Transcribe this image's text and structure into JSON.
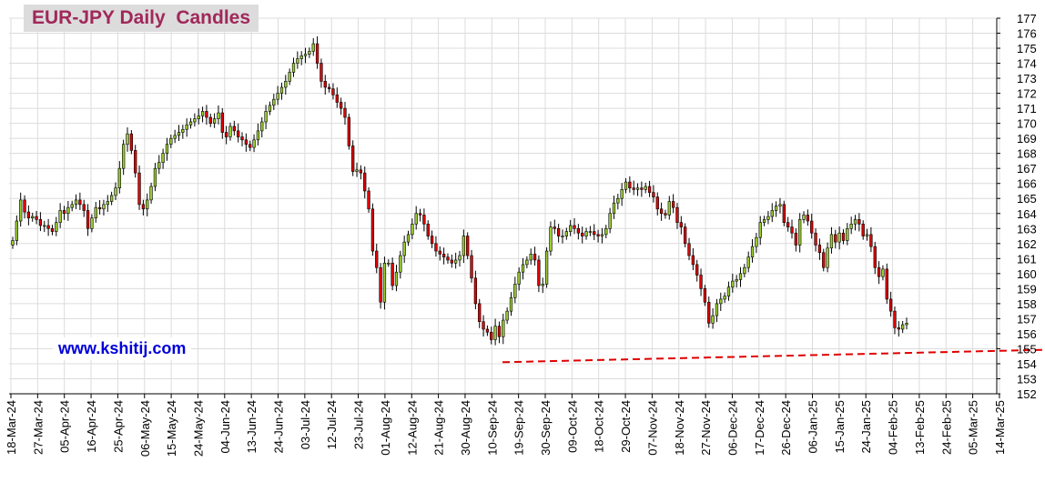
{
  "chart_data": {
    "type": "candlestick",
    "title": "EUR-JPY Daily  Candles",
    "watermark": "www.kshitij.com",
    "ylim": [
      152,
      177
    ],
    "y_ticks": [
      152,
      153,
      154,
      155,
      156,
      157,
      158,
      159,
      160,
      161,
      162,
      163,
      164,
      165,
      166,
      167,
      168,
      169,
      170,
      171,
      172,
      173,
      174,
      175,
      176,
      177
    ],
    "x_labels": [
      "18-Mar-24",
      "27-Mar-24",
      "05-Apr-24",
      "16-Apr-24",
      "25-Apr-24",
      "06-May-24",
      "15-May-24",
      "24-May-24",
      "04-Jun-24",
      "13-Jun-24",
      "24-Jun-24",
      "03-Jul-24",
      "12-Jul-24",
      "23-Jul-24",
      "01-Aug-24",
      "12-Aug-24",
      "21-Aug-24",
      "30-Aug-24",
      "10-Sep-24",
      "19-Sep-24",
      "30-Sep-24",
      "09-Oct-24",
      "18-Oct-24",
      "29-Oct-24",
      "07-Nov-24",
      "18-Nov-24",
      "27-Nov-24",
      "06-Dec-24",
      "17-Dec-24",
      "26-Dec-24",
      "06-Jan-25",
      "15-Jan-25",
      "24-Jan-25",
      "04-Feb-25",
      "13-Feb-25",
      "24-Feb-25",
      "05-Mar-25",
      "14-Mar-25"
    ],
    "up_color": "#9acd32",
    "down_color": "#e00000",
    "trendline": {
      "color": "#e00000",
      "style": "dashed",
      "start": {
        "x_index": 18.4,
        "y": 154.1
      },
      "end": {
        "x_index": 62.5,
        "y": 155.9
      }
    },
    "grid": true,
    "y_axis_side": "right",
    "closes": [
      162.2,
      163.5,
      164.9,
      164.1,
      163.7,
      163.8,
      163.6,
      163.2,
      163.2,
      163.0,
      162.8,
      163.4,
      164.2,
      164.0,
      164.4,
      164.6,
      164.9,
      164.6,
      164.2,
      163.0,
      163.7,
      164.4,
      164.3,
      164.6,
      164.8,
      165.2,
      165.7,
      167.0,
      168.6,
      169.3,
      168.2,
      166.7,
      164.6,
      164.3,
      164.9,
      165.8,
      167.0,
      167.4,
      168.0,
      168.6,
      169.0,
      169.2,
      169.4,
      169.6,
      169.9,
      170.1,
      170.3,
      170.5,
      170.8,
      170.4,
      170.0,
      170.3,
      170.7,
      169.4,
      169.1,
      169.8,
      169.5,
      169.1,
      168.9,
      168.6,
      168.4,
      168.9,
      169.5,
      170.1,
      170.8,
      171.2,
      171.6,
      172.0,
      172.4,
      172.8,
      173.4,
      174.0,
      174.3,
      174.5,
      174.6,
      174.8,
      175.3,
      174.0,
      172.8,
      172.4,
      172.3,
      171.9,
      171.4,
      171.0,
      170.4,
      168.5,
      166.8,
      166.9,
      166.7,
      165.5,
      164.3,
      161.5,
      160.4,
      158.1,
      160.7,
      160.7,
      159.2,
      160.1,
      161.2,
      162.1,
      162.6,
      163.3,
      164.0,
      163.9,
      163.3,
      162.5,
      162.0,
      161.5,
      161.3,
      161.1,
      160.9,
      160.7,
      160.9,
      161.2,
      162.5,
      161.2,
      159.7,
      158.0,
      156.8,
      156.3,
      156.1,
      155.6,
      156.5,
      155.8,
      156.9,
      157.5,
      158.4,
      159.3,
      160.1,
      160.6,
      160.9,
      161.3,
      160.9,
      159.2,
      159.3,
      161.5,
      163.1,
      163.0,
      162.5,
      162.5,
      162.8,
      163.2,
      163.0,
      162.7,
      162.5,
      162.8,
      162.8,
      162.6,
      162.5,
      162.6,
      163.0,
      164.0,
      164.7,
      165.0,
      165.6,
      166.1,
      165.7,
      165.6,
      165.7,
      165.6,
      165.8,
      165.4,
      165.1,
      164.3,
      164.0,
      163.9,
      164.8,
      164.4,
      163.4,
      163.1,
      162.0,
      161.2,
      160.6,
      159.9,
      159.0,
      158.1,
      156.7,
      157.2,
      158.0,
      158.3,
      158.5,
      159.1,
      159.5,
      159.6,
      160.0,
      160.4,
      161.1,
      161.8,
      162.4,
      163.4,
      163.6,
      163.8,
      164.2,
      164.5,
      164.6,
      163.4,
      163.1,
      162.7,
      161.9,
      163.6,
      163.9,
      163.5,
      162.7,
      161.9,
      161.4,
      160.4,
      161.7,
      162.6,
      162.1,
      162.7,
      162.2,
      163.0,
      163.3,
      163.6,
      163.3,
      162.5,
      162.6,
      161.8,
      160.4,
      159.8,
      160.3,
      158.3,
      157.5,
      156.4,
      156.3,
      156.6,
      156.7
    ]
  }
}
